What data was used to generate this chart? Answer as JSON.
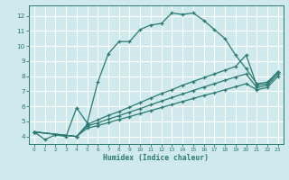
{
  "bg_color": "#cfe9ec",
  "grid_color": "#b8d8dc",
  "line_color": "#2a7a72",
  "xlim": [
    -0.5,
    23.5
  ],
  "ylim": [
    3.5,
    12.7
  ],
  "xticks": [
    0,
    1,
    2,
    3,
    4,
    5,
    6,
    7,
    8,
    9,
    10,
    11,
    12,
    13,
    14,
    15,
    16,
    17,
    18,
    19,
    20,
    21,
    22,
    23
  ],
  "yticks": [
    4,
    5,
    6,
    7,
    8,
    9,
    10,
    11,
    12
  ],
  "xlabel": "Humidex (Indice chaleur)",
  "curve1_x": [
    0,
    1,
    2,
    3,
    4,
    5,
    6,
    7,
    8,
    9,
    10,
    11,
    12,
    13,
    14,
    15,
    16,
    17,
    18,
    19,
    20,
    21,
    22,
    23
  ],
  "curve1_y": [
    4.3,
    3.8,
    4.1,
    4.0,
    5.9,
    4.9,
    7.6,
    9.5,
    10.3,
    10.3,
    11.1,
    11.4,
    11.5,
    12.2,
    12.1,
    12.2,
    11.7,
    11.1,
    10.5,
    9.4,
    8.5,
    7.5,
    7.6,
    8.3
  ],
  "line1_x": [
    0,
    4,
    5,
    6,
    7,
    8,
    9,
    10,
    11,
    12,
    13,
    14,
    15,
    16,
    17,
    18,
    19,
    20,
    21,
    22,
    23
  ],
  "line1_y": [
    4.3,
    4.0,
    4.8,
    5.1,
    5.4,
    5.65,
    5.95,
    6.25,
    6.55,
    6.85,
    7.1,
    7.4,
    7.65,
    7.9,
    8.15,
    8.4,
    8.65,
    9.4,
    7.4,
    7.5,
    8.3
  ],
  "line2_x": [
    0,
    4,
    5,
    6,
    7,
    8,
    9,
    10,
    11,
    12,
    13,
    14,
    15,
    16,
    17,
    18,
    19,
    20,
    21,
    22,
    23
  ],
  "line2_y": [
    4.3,
    4.0,
    4.7,
    4.9,
    5.15,
    5.38,
    5.62,
    5.85,
    6.1,
    6.35,
    6.58,
    6.82,
    7.05,
    7.28,
    7.5,
    7.73,
    7.95,
    8.15,
    7.25,
    7.4,
    8.15
  ],
  "line3_x": [
    0,
    4,
    5,
    6,
    7,
    8,
    9,
    10,
    11,
    12,
    13,
    14,
    15,
    16,
    17,
    18,
    19,
    20,
    21,
    22,
    23
  ],
  "line3_y": [
    4.3,
    4.0,
    4.55,
    4.72,
    4.92,
    5.12,
    5.32,
    5.52,
    5.72,
    5.92,
    6.12,
    6.32,
    6.52,
    6.72,
    6.9,
    7.1,
    7.3,
    7.5,
    7.1,
    7.25,
    8.0
  ]
}
